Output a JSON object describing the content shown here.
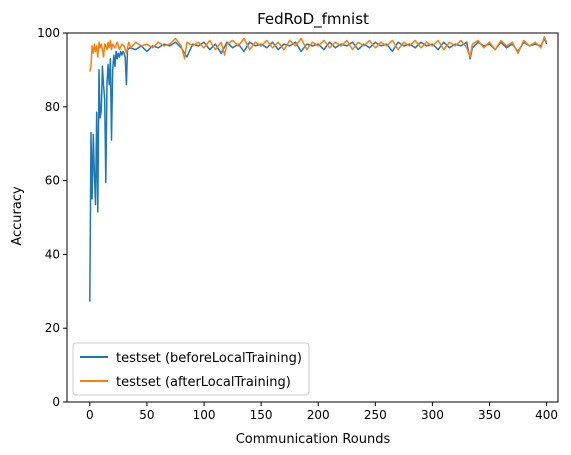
{
  "chart_data": {
    "type": "line",
    "title": "FedRoD_fmnist",
    "xlabel": "Communication Rounds",
    "ylabel": "Accuracy",
    "xlim": [
      -20,
      410
    ],
    "ylim": [
      0,
      100
    ],
    "xticks": [
      0,
      50,
      100,
      150,
      200,
      250,
      300,
      350,
      400
    ],
    "yticks": [
      0,
      20,
      40,
      60,
      80,
      100
    ],
    "grid": false,
    "legend_position": "lower-left",
    "series": [
      {
        "name": "testset (beforeLocalTraining)",
        "color": "#1f77b4",
        "points": [
          [
            0,
            27.2
          ],
          [
            1,
            73.0
          ],
          [
            2,
            55.0
          ],
          [
            3,
            72.5
          ],
          [
            4,
            61.5
          ],
          [
            5,
            53.5
          ],
          [
            6,
            78.5
          ],
          [
            7,
            51.5
          ],
          [
            8,
            90.0
          ],
          [
            9,
            77.0
          ],
          [
            10,
            79.0
          ],
          [
            11,
            91.0
          ],
          [
            12,
            86.0
          ],
          [
            13,
            82.0
          ],
          [
            14,
            59.5
          ],
          [
            15,
            86.5
          ],
          [
            16,
            91.5
          ],
          [
            17,
            86.0
          ],
          [
            18,
            93.0
          ],
          [
            19,
            71.0
          ],
          [
            20,
            90.0
          ],
          [
            21,
            94.0
          ],
          [
            22,
            91.0
          ],
          [
            23,
            95.0
          ],
          [
            24,
            93.0
          ],
          [
            25,
            94.5
          ],
          [
            26,
            93.5
          ],
          [
            27,
            95.0
          ],
          [
            28,
            94.0
          ],
          [
            29,
            95.0
          ],
          [
            30,
            94.5
          ],
          [
            31,
            93.5
          ],
          [
            32,
            86.0
          ],
          [
            33,
            95.5
          ],
          [
            35,
            96.0
          ],
          [
            40,
            95.5
          ],
          [
            45,
            96.5
          ],
          [
            50,
            95.0
          ],
          [
            55,
            96.5
          ],
          [
            60,
            96.0
          ],
          [
            65,
            97.0
          ],
          [
            70,
            96.5
          ],
          [
            75,
            97.5
          ],
          [
            80,
            96.0
          ],
          [
            85,
            93.5
          ],
          [
            90,
            97.0
          ],
          [
            95,
            96.5
          ],
          [
            100,
            97.5
          ],
          [
            105,
            95.5
          ],
          [
            110,
            97.0
          ],
          [
            115,
            94.5
          ],
          [
            120,
            97.5
          ],
          [
            125,
            96.0
          ],
          [
            130,
            97.0
          ],
          [
            135,
            95.0
          ],
          [
            140,
            97.5
          ],
          [
            145,
            96.5
          ],
          [
            150,
            97.0
          ],
          [
            155,
            96.0
          ],
          [
            160,
            97.5
          ],
          [
            165,
            95.5
          ],
          [
            170,
            97.0
          ],
          [
            175,
            96.5
          ],
          [
            180,
            97.5
          ],
          [
            185,
            95.0
          ],
          [
            190,
            97.0
          ],
          [
            195,
            96.5
          ],
          [
            200,
            97.0
          ],
          [
            205,
            95.5
          ],
          [
            210,
            97.5
          ],
          [
            215,
            96.0
          ],
          [
            220,
            97.0
          ],
          [
            225,
            96.5
          ],
          [
            230,
            97.5
          ],
          [
            235,
            95.5
          ],
          [
            240,
            97.0
          ],
          [
            245,
            96.0
          ],
          [
            250,
            97.5
          ],
          [
            255,
            96.5
          ],
          [
            260,
            97.0
          ],
          [
            265,
            95.0
          ],
          [
            270,
            97.5
          ],
          [
            275,
            96.5
          ],
          [
            280,
            97.0
          ],
          [
            285,
            96.0
          ],
          [
            290,
            97.5
          ],
          [
            295,
            96.5
          ],
          [
            300,
            97.0
          ],
          [
            305,
            95.5
          ],
          [
            310,
            97.5
          ],
          [
            315,
            96.0
          ],
          [
            320,
            97.0
          ],
          [
            325,
            96.5
          ],
          [
            330,
            97.5
          ],
          [
            333,
            93.0
          ],
          [
            335,
            96.0
          ],
          [
            340,
            97.5
          ],
          [
            345,
            96.5
          ],
          [
            350,
            97.0
          ],
          [
            355,
            95.5
          ],
          [
            360,
            97.5
          ],
          [
            365,
            96.0
          ],
          [
            370,
            97.0
          ],
          [
            375,
            95.0
          ],
          [
            380,
            97.5
          ],
          [
            385,
            96.5
          ],
          [
            390,
            97.0
          ],
          [
            395,
            96.5
          ],
          [
            398,
            98.5
          ],
          [
            400,
            97.0
          ]
        ]
      },
      {
        "name": "testset (afterLocalTraining)",
        "color": "#ff7f0e",
        "points": [
          [
            0,
            89.5
          ],
          [
            1,
            91.0
          ],
          [
            2,
            96.5
          ],
          [
            3,
            94.5
          ],
          [
            4,
            97.0
          ],
          [
            5,
            95.0
          ],
          [
            6,
            96.5
          ],
          [
            7,
            93.5
          ],
          [
            8,
            97.5
          ],
          [
            9,
            96.0
          ],
          [
            10,
            97.0
          ],
          [
            11,
            95.5
          ],
          [
            12,
            93.5
          ],
          [
            13,
            97.0
          ],
          [
            14,
            96.5
          ],
          [
            15,
            95.5
          ],
          [
            16,
            97.5
          ],
          [
            17,
            96.0
          ],
          [
            18,
            98.0
          ],
          [
            19,
            95.5
          ],
          [
            20,
            97.0
          ],
          [
            22,
            96.0
          ],
          [
            24,
            97.5
          ],
          [
            26,
            95.5
          ],
          [
            28,
            97.0
          ],
          [
            30,
            96.5
          ],
          [
            32,
            94.5
          ],
          [
            34,
            97.5
          ],
          [
            36,
            96.0
          ],
          [
            40,
            97.5
          ],
          [
            45,
            96.5
          ],
          [
            50,
            97.0
          ],
          [
            55,
            96.0
          ],
          [
            60,
            97.5
          ],
          [
            65,
            96.5
          ],
          [
            70,
            97.0
          ],
          [
            75,
            98.5
          ],
          [
            80,
            96.5
          ],
          [
            83,
            93.0
          ],
          [
            85,
            97.5
          ],
          [
            90,
            96.5
          ],
          [
            95,
            97.5
          ],
          [
            100,
            96.0
          ],
          [
            105,
            98.0
          ],
          [
            110,
            95.5
          ],
          [
            115,
            97.5
          ],
          [
            118,
            94.0
          ],
          [
            120,
            97.0
          ],
          [
            125,
            98.0
          ],
          [
            130,
            96.5
          ],
          [
            135,
            98.5
          ],
          [
            140,
            95.5
          ],
          [
            145,
            97.5
          ],
          [
            150,
            96.5
          ],
          [
            155,
            98.0
          ],
          [
            160,
            96.0
          ],
          [
            165,
            97.5
          ],
          [
            170,
            95.5
          ],
          [
            175,
            98.0
          ],
          [
            180,
            96.5
          ],
          [
            185,
            98.5
          ],
          [
            190,
            95.5
          ],
          [
            195,
            97.5
          ],
          [
            200,
            96.5
          ],
          [
            205,
            98.0
          ],
          [
            210,
            96.0
          ],
          [
            215,
            97.5
          ],
          [
            220,
            96.5
          ],
          [
            225,
            98.0
          ],
          [
            230,
            95.5
          ],
          [
            235,
            97.5
          ],
          [
            240,
            96.5
          ],
          [
            245,
            98.0
          ],
          [
            250,
            96.0
          ],
          [
            255,
            97.5
          ],
          [
            260,
            96.5
          ],
          [
            265,
            98.0
          ],
          [
            270,
            95.5
          ],
          [
            275,
            97.5
          ],
          [
            280,
            96.5
          ],
          [
            285,
            98.0
          ],
          [
            290,
            96.0
          ],
          [
            295,
            97.5
          ],
          [
            300,
            96.5
          ],
          [
            305,
            98.0
          ],
          [
            310,
            95.5
          ],
          [
            315,
            97.5
          ],
          [
            320,
            96.5
          ],
          [
            325,
            98.0
          ],
          [
            330,
            96.0
          ],
          [
            333,
            93.5
          ],
          [
            335,
            97.0
          ],
          [
            340,
            98.0
          ],
          [
            345,
            96.0
          ],
          [
            350,
            97.5
          ],
          [
            355,
            95.5
          ],
          [
            360,
            98.0
          ],
          [
            365,
            96.5
          ],
          [
            370,
            97.5
          ],
          [
            375,
            94.5
          ],
          [
            380,
            98.0
          ],
          [
            385,
            96.5
          ],
          [
            390,
            97.5
          ],
          [
            395,
            96.0
          ],
          [
            398,
            99.0
          ],
          [
            400,
            97.5
          ]
        ]
      }
    ]
  }
}
